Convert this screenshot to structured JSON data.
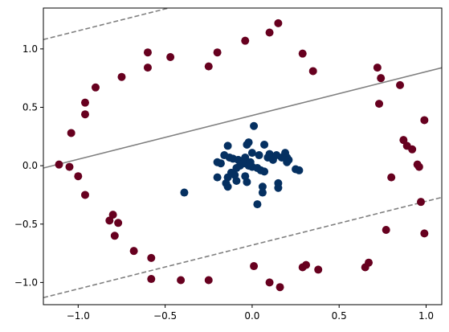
{
  "chart_data": {
    "type": "scatter",
    "title": "",
    "xlabel": "",
    "ylabel": "",
    "xlim": [
      -1.2,
      1.09
    ],
    "ylim": [
      -1.19,
      1.35
    ],
    "grid": false,
    "x_ticks": [
      -1.0,
      -0.5,
      0.0,
      0.5,
      1.0
    ],
    "x_tick_labels": [
      "−1.0",
      "−0.5",
      "0.0",
      "0.5",
      "1.0"
    ],
    "y_ticks": [
      -1.0,
      -0.5,
      0.0,
      0.5,
      1.0
    ],
    "y_tick_labels": [
      "−1.0",
      "−0.5",
      "0.0",
      "0.5",
      "1.0"
    ],
    "point_colors": {
      "outer": "#67001f",
      "inner": "#053061"
    },
    "line_color": "#808080",
    "series": [
      {
        "points": [
          [
            -0.6,
            0.97
          ],
          [
            -0.47,
            0.93
          ],
          [
            -0.2,
            0.97
          ],
          [
            -0.25,
            0.85
          ],
          [
            -0.6,
            0.84
          ],
          [
            -0.75,
            0.76
          ],
          [
            -0.9,
            0.67
          ],
          [
            -0.96,
            0.54
          ],
          [
            -0.96,
            0.44
          ],
          [
            -1.04,
            0.28
          ],
          [
            -1.11,
            0.01
          ],
          [
            -1.05,
            -0.01
          ],
          [
            -1.0,
            -0.09
          ],
          [
            -0.96,
            -0.25
          ],
          [
            -0.8,
            -0.42
          ],
          [
            -0.82,
            -0.47
          ],
          [
            -0.77,
            -0.49
          ],
          [
            -0.79,
            -0.6
          ],
          [
            -0.68,
            -0.73
          ],
          [
            -0.58,
            -0.79
          ],
          [
            -0.58,
            -0.97
          ],
          [
            -0.41,
            -0.98
          ],
          [
            -0.25,
            -0.98
          ],
          [
            0.01,
            -0.86
          ],
          [
            0.1,
            -1.0
          ],
          [
            0.16,
            -1.04
          ],
          [
            0.29,
            -0.87
          ],
          [
            0.31,
            -0.85
          ],
          [
            0.38,
            -0.89
          ],
          [
            0.65,
            -0.87
          ],
          [
            0.67,
            -0.83
          ],
          [
            0.77,
            -0.55
          ],
          [
            0.97,
            -0.31
          ],
          [
            0.99,
            -0.58
          ],
          [
            0.8,
            -0.1
          ],
          [
            0.95,
            0.01
          ],
          [
            0.96,
            -0.01
          ],
          [
            0.89,
            0.17
          ],
          [
            0.92,
            0.14
          ],
          [
            0.87,
            0.22
          ],
          [
            0.99,
            0.39
          ],
          [
            0.85,
            0.69
          ],
          [
            0.73,
            0.53
          ],
          [
            0.74,
            0.75
          ],
          [
            0.72,
            0.84
          ],
          [
            0.35,
            0.81
          ],
          [
            0.29,
            0.96
          ],
          [
            0.15,
            1.22
          ],
          [
            0.1,
            1.14
          ],
          [
            -0.04,
            1.07
          ]
        ],
        "color_key": "outer"
      },
      {
        "points": [
          [
            0.01,
            0.34
          ],
          [
            -0.14,
            0.17
          ],
          [
            -0.02,
            0.2
          ],
          [
            -0.03,
            0.18
          ],
          [
            0.07,
            0.18
          ],
          [
            0.19,
            0.11
          ],
          [
            0.2,
            0.07
          ],
          [
            0.1,
            0.1
          ],
          [
            0.14,
            0.09
          ],
          [
            0.21,
            0.05
          ],
          [
            0.17,
            0.07
          ],
          [
            0.2,
            0.03
          ],
          [
            0.25,
            -0.03
          ],
          [
            0.27,
            -0.04
          ],
          [
            0.04,
            0.09
          ],
          [
            0.09,
            0.07
          ],
          [
            0.12,
            0.05
          ],
          [
            -0.16,
            0.09
          ],
          [
            -0.13,
            0.07
          ],
          [
            -0.11,
            0.06
          ],
          [
            -0.08,
            0.05
          ],
          [
            -0.06,
            0.04
          ],
          [
            -0.04,
            0.07
          ],
          [
            -0.05,
            0.02
          ],
          [
            -0.02,
            0.0
          ],
          [
            0.0,
            -0.01
          ],
          [
            0.03,
            -0.02
          ],
          [
            0.05,
            -0.04
          ],
          [
            0.07,
            -0.05
          ],
          [
            -0.09,
            -0.02
          ],
          [
            -0.12,
            -0.06
          ],
          [
            -0.14,
            -0.1
          ],
          [
            -0.18,
            0.02
          ],
          [
            -0.2,
            0.03
          ],
          [
            -0.2,
            -0.1
          ],
          [
            -0.15,
            -0.15
          ],
          [
            -0.14,
            -0.18
          ],
          [
            -0.04,
            -0.09
          ],
          [
            -0.03,
            -0.14
          ],
          [
            -0.09,
            -0.13
          ],
          [
            -0.1,
            -0.08
          ],
          [
            0.06,
            -0.18
          ],
          [
            0.06,
            -0.23
          ],
          [
            0.15,
            -0.15
          ],
          [
            0.15,
            -0.19
          ],
          [
            0.03,
            -0.33
          ],
          [
            -0.39,
            -0.23
          ],
          [
            -0.07,
            0.0
          ],
          [
            -0.01,
            0.03
          ],
          [
            0.0,
            0.11
          ]
        ],
        "color_key": "inner"
      }
    ],
    "decision_line": {
      "slope": 0.375,
      "intercept": 0.43
    },
    "margin_lines": [
      {
        "slope": 0.375,
        "intercept": 1.53,
        "dashed": true
      },
      {
        "slope": 0.375,
        "intercept": -0.68,
        "dashed": true
      }
    ]
  }
}
